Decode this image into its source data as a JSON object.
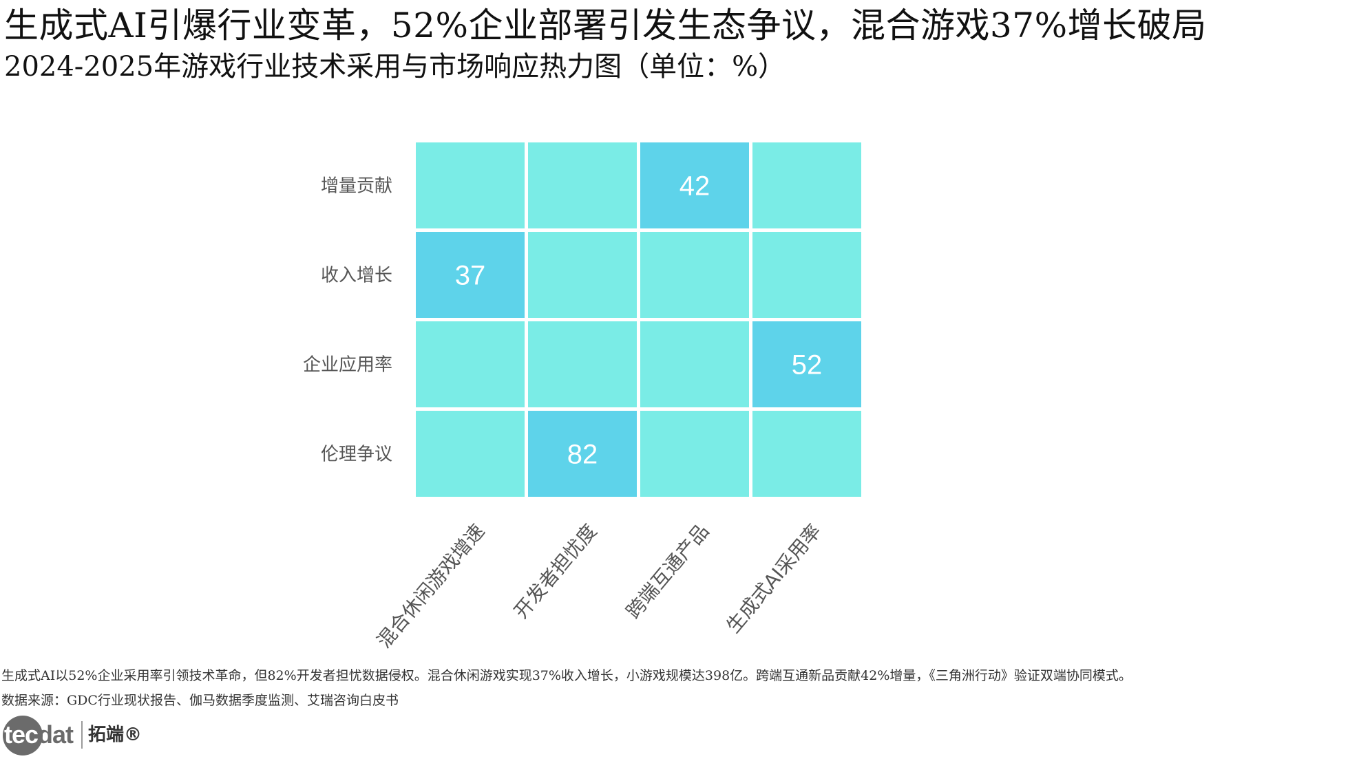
{
  "title": "生成式AI引爆行业变革，52%企业部署引发生态争议，混合游戏37%增长破局",
  "subtitle": "2024-2025年游戏行业技术采用与市场响应热力图（单位：%）",
  "chart_data": {
    "type": "heatmap",
    "rows": [
      "增量贡献",
      "收入增长",
      "企业应用率",
      "伦理争议"
    ],
    "columns": [
      "混合休闲游戏增速",
      "开发者担忧度",
      "跨端互通产品",
      "生成式AI采用率"
    ],
    "values": [
      [
        null,
        null,
        42,
        null
      ],
      [
        37,
        null,
        null,
        null
      ],
      [
        null,
        null,
        null,
        52
      ],
      [
        null,
        82,
        null,
        null
      ]
    ],
    "colors": {
      "empty": "#7aece6",
      "filled": "#5ed3ea",
      "value_text": "#ffffff",
      "axis_text": "#555555"
    },
    "grid": false
  },
  "footnotes": {
    "summary": "生成式AI以52%企业采用率引领技术革命，但82%开发者担忧数据侵权。混合休闲游戏实现37%收入增长，小游戏规模达398亿。跨端互通新品贡献42%增量，《三角洲行动》验证双端协同模式。",
    "source": "数据来源：GDC行业现状报告、伽马数据季度监测、艾瑞咨询白皮书"
  },
  "logo": {
    "word_part1": "tec",
    "word_part2": "dat",
    "cn_name": "拓端®"
  }
}
